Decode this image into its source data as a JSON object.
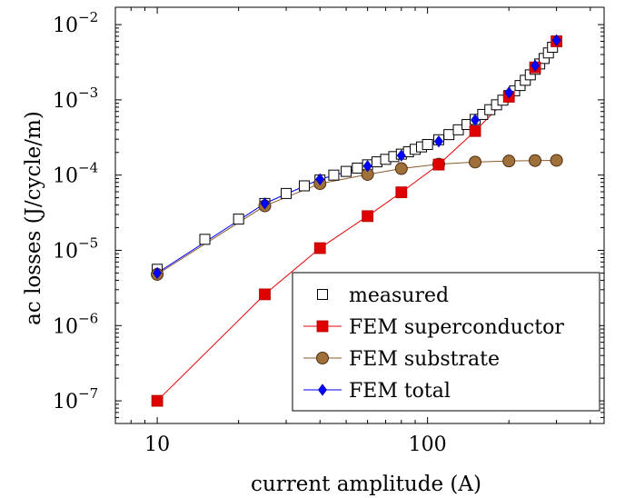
{
  "chart_data": {
    "type": "line",
    "xlabel": "current amplitude (A)",
    "ylabel": "ac losses (J/cycle/m)",
    "xscale": "log",
    "yscale": "log",
    "xlim": [
      7,
      450
    ],
    "ylim": [
      5e-08,
      0.017
    ],
    "grid": false,
    "legend": "bottom-right",
    "x_ticks": [
      {
        "value": 10,
        "base": "10",
        "exp": ""
      },
      {
        "value": 100,
        "base": "100",
        "exp": ""
      }
    ],
    "y_ticks": [
      {
        "value": 1e-07,
        "base": "10",
        "exp": "−7"
      },
      {
        "value": 1e-06,
        "base": "10",
        "exp": "−6"
      },
      {
        "value": 1e-05,
        "base": "10",
        "exp": "−5"
      },
      {
        "value": 0.0001,
        "base": "10",
        "exp": "−4"
      },
      {
        "value": 0.001,
        "base": "10",
        "exp": "−3"
      },
      {
        "value": 0.01,
        "base": "10",
        "exp": "−2"
      }
    ],
    "series": [
      {
        "name": "measured",
        "marker": "open-square",
        "color": "#000000",
        "line": false,
        "x": [
          10,
          15,
          20,
          25,
          30,
          35,
          40,
          45,
          50,
          55,
          60,
          65,
          70,
          75,
          80,
          85,
          90,
          95,
          100,
          110,
          120,
          130,
          140,
          150,
          160,
          170,
          180,
          190,
          200,
          210,
          220,
          230,
          240,
          250,
          260,
          270,
          280,
          290,
          300
        ],
        "y": [
          5.6e-06,
          1.4e-05,
          2.6e-05,
          4.2e-05,
          5.7e-05,
          7.2e-05,
          8.6e-05,
          0.0001,
          0.000112,
          0.000124,
          0.000137,
          0.00015,
          0.000162,
          0.000176,
          0.00019,
          0.000204,
          0.00022,
          0.000237,
          0.000255,
          0.000295,
          0.000345,
          0.0004,
          0.00047,
          0.00055,
          0.00064,
          0.00074,
          0.00086,
          0.00099,
          0.00114,
          0.00132,
          0.00155,
          0.00182,
          0.00215,
          0.00255,
          0.003,
          0.00355,
          0.0042,
          0.005,
          0.006
        ]
      },
      {
        "name": "FEM superconductor",
        "marker": "filled-square",
        "color": "#e00000",
        "line": true,
        "x": [
          10,
          25,
          40,
          60,
          80,
          110,
          150,
          200,
          250,
          300
        ],
        "y": [
          1e-07,
          2.6e-06,
          1.07e-05,
          2.85e-05,
          5.9e-05,
          0.000138,
          0.000385,
          0.0011,
          0.0027,
          0.006
        ]
      },
      {
        "name": "FEM substrate",
        "marker": "filled-circle",
        "color": "#8b5a2b",
        "fill": "#a0703a",
        "line": true,
        "x": [
          10,
          25,
          40,
          60,
          80,
          110,
          150,
          200,
          250,
          300
        ],
        "y": [
          4.8e-06,
          3.9e-05,
          7.7e-05,
          0.000102,
          0.000122,
          0.00014,
          0.000149,
          0.000154,
          0.000156,
          0.000157
        ]
      },
      {
        "name": "FEM total",
        "marker": "filled-diamond",
        "color": "#0000ff",
        "line": true,
        "x": [
          10,
          25,
          40,
          60,
          80,
          110,
          150,
          200,
          250,
          300
        ],
        "y": [
          5e-06,
          4.2e-05,
          8.8e-05,
          0.000132,
          0.000182,
          0.00028,
          0.00054,
          0.00125,
          0.00285,
          0.0062
        ]
      }
    ]
  }
}
